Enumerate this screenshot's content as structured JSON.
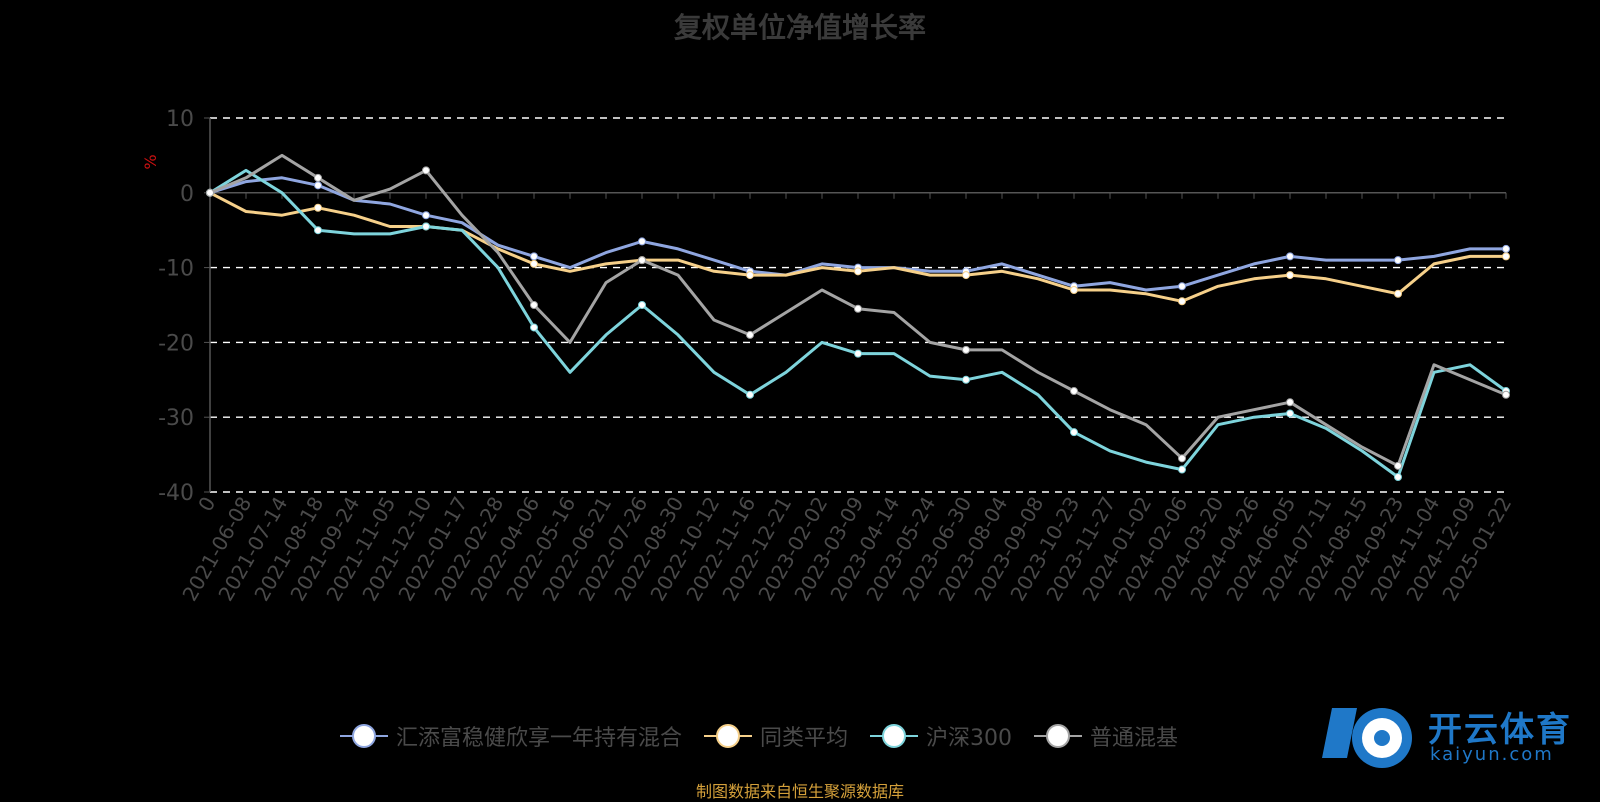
{
  "chart_data": {
    "type": "line",
    "title": "复权单位净值增长率",
    "ylabel": "%",
    "ylim": [
      -40,
      10
    ],
    "yticks": [
      10,
      0,
      -10,
      -20,
      -30,
      -40
    ],
    "grid": true,
    "legend_position": "bottom",
    "categories": [
      "0",
      "2021-06-08",
      "2021-07-14",
      "2021-08-18",
      "2021-09-24",
      "2021-11-05",
      "2021-12-10",
      "2022-01-17",
      "2022-02-28",
      "2022-04-06",
      "2022-05-16",
      "2022-06-21",
      "2022-07-26",
      "2022-08-30",
      "2022-10-12",
      "2022-11-16",
      "2022-12-21",
      "2023-02-02",
      "2023-03-09",
      "2023-04-14",
      "2023-05-24",
      "2023-06-30",
      "2023-08-04",
      "2023-09-08",
      "2023-10-23",
      "2023-11-27",
      "2024-01-02",
      "2024-02-06",
      "2024-03-20",
      "2024-04-26",
      "2024-06-05",
      "2024-07-11",
      "2024-08-15",
      "2024-09-23",
      "2024-11-04",
      "2024-12-09",
      "2025-01-22"
    ],
    "series": [
      {
        "name": "汇添富稳健欣享一年持有混合",
        "color": "#8fa6e0",
        "values": [
          0,
          1.5,
          2,
          1,
          -1,
          -1.5,
          -3,
          -4,
          -7,
          -8.5,
          -10,
          -8,
          -6.5,
          -7.5,
          -9,
          -10.5,
          -11,
          -9.5,
          -10,
          -10,
          -10.5,
          -10.5,
          -9.5,
          -11,
          -12.5,
          -12,
          -13,
          -12.5,
          -11,
          -9.5,
          -8.5,
          -9,
          -9,
          -9,
          -8.5,
          -7.5,
          -7.5
        ]
      },
      {
        "name": "同类平均",
        "color": "#f6d08a",
        "values": [
          0,
          -2.5,
          -3,
          -2,
          -3,
          -4.5,
          -4.5,
          -5,
          -7.5,
          -9.5,
          -10.5,
          -9.5,
          -9,
          -9,
          -10.5,
          -11,
          -11,
          -10,
          -10.5,
          -10,
          -11,
          -11,
          -10.5,
          -11.5,
          -13,
          -13,
          -13.5,
          -14.5,
          -12.5,
          -11.5,
          -11,
          -11.5,
          -12.5,
          -13.5,
          -9.5,
          -8.5,
          -8.5
        ]
      },
      {
        "name": "沪深300",
        "color": "#7ed4dc",
        "values": [
          0,
          3,
          0,
          -5,
          -5.5,
          -5.5,
          -4.5,
          -5,
          -10,
          -18,
          -24,
          -19,
          -15,
          -19,
          -24,
          -27,
          -24,
          -20,
          -21.5,
          -21.5,
          -24.5,
          -25,
          -24,
          -27,
          -32,
          -34.5,
          -36,
          -37,
          -31,
          -30,
          -29.5,
          -31.5,
          -34.5,
          -38,
          -24,
          -23,
          -26.5
        ]
      },
      {
        "name": "普通混基",
        "color": "#a4a4a4",
        "values": [
          0,
          2,
          5,
          2,
          -1,
          0.5,
          3,
          -3,
          -8,
          -15,
          -20,
          -12,
          -9,
          -11,
          -17,
          -19,
          -16,
          -13,
          -15.5,
          -16,
          -20,
          -21,
          -21,
          -24,
          -26.5,
          -29,
          -31,
          -35.5,
          -30,
          -29,
          -28,
          -31,
          -34,
          -36.5,
          -23,
          -25,
          -27
        ]
      }
    ]
  },
  "source_note": "制图数据来自恒生聚源数据库",
  "logo": {
    "main": "开云体育",
    "sub": "kaiyun.com"
  }
}
